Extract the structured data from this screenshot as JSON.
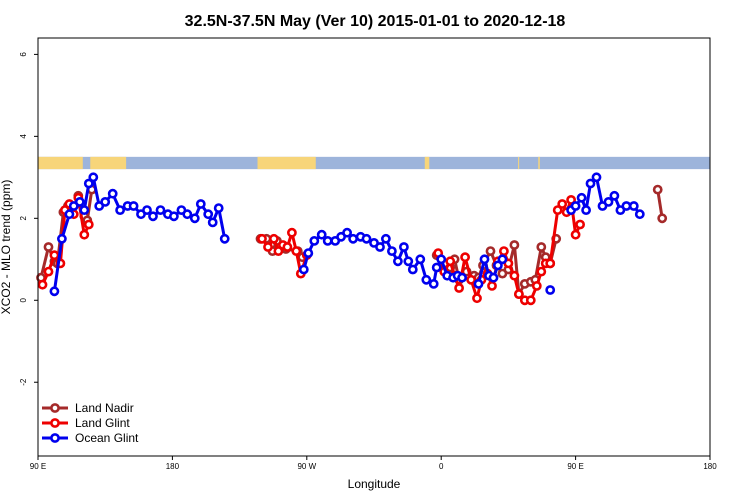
{
  "chart_data": {
    "type": "line",
    "title": "32.5N-37.5N May (Ver 10)   2015-01-01 to 2020-12-18",
    "xlabel": "Longitude",
    "ylabel": "XCO2 - MLO trend (ppm)",
    "xlim": [
      90,
      540
    ],
    "ylim": [
      -3.8,
      6.4
    ],
    "x_ticks": [
      {
        "value": 90,
        "label": "90 E"
      },
      {
        "value": 180,
        "label": "180"
      },
      {
        "value": 270,
        "label": "90 W"
      },
      {
        "value": 360,
        "label": "0"
      },
      {
        "value": 450,
        "label": "90 E"
      },
      {
        "value": 540,
        "label": "180"
      }
    ],
    "y_ticks": [
      {
        "value": -2,
        "label": "-2"
      },
      {
        "value": 0,
        "label": "0"
      },
      {
        "value": 2,
        "label": "2"
      },
      {
        "value": 4,
        "label": "4"
      },
      {
        "value": 6,
        "label": "6"
      }
    ],
    "land_band": {
      "y_range": [
        3.2,
        3.5
      ],
      "ocean_color": "#9db4db",
      "land_color": "#f7d57a",
      "land_segments": [
        [
          90,
          120
        ],
        [
          125,
          149
        ],
        [
          237,
          276
        ],
        [
          349,
          352
        ],
        [
          412,
          411.5
        ],
        [
          425,
          426
        ]
      ]
    },
    "legend_position": "bottom-left",
    "series": [
      {
        "name": "Land Nadir",
        "color": "#a52a2a",
        "segments": [
          [
            [
              92,
              0.55
            ],
            [
              97,
              1.3
            ],
            [
              101,
              0.95
            ],
            [
              103,
              0.9
            ],
            [
              107,
              2.15
            ],
            [
              110,
              2.3
            ],
            [
              113,
              2.15
            ],
            [
              117,
              2.55
            ],
            [
              121,
              2.05
            ],
            [
              123,
              1.95
            ],
            [
              126,
              2.7
            ]
          ],
          [
            [
              239,
              1.5
            ],
            [
              243,
              1.5
            ],
            [
              247,
              1.2
            ],
            [
              250,
              1.45
            ],
            [
              256,
              1.25
            ],
            [
              264,
              1.2
            ],
            [
              267,
              1.05
            ]
          ],
          [
            [
              357,
              1.1
            ],
            [
              363,
              0.9
            ],
            [
              366,
              0.8
            ],
            [
              369,
              1.0
            ],
            [
              372,
              0.5
            ],
            [
              377,
              0.7
            ],
            [
              382,
              0.6
            ],
            [
              385,
              0.55
            ],
            [
              388,
              0.85
            ],
            [
              393,
              1.2
            ],
            [
              397,
              0.85
            ],
            [
              401,
              0.65
            ],
            [
              405,
              0.75
            ],
            [
              409,
              1.35
            ],
            [
              412,
              0.15
            ],
            [
              416,
              0.4
            ],
            [
              420,
              0.45
            ],
            [
              423,
              0.5
            ],
            [
              427,
              1.3
            ],
            [
              430,
              1.05
            ],
            [
              433,
              0.9
            ],
            [
              437,
              1.5
            ]
          ],
          [
            [
              505,
              2.7
            ],
            [
              508,
              2.0
            ]
          ]
        ]
      },
      {
        "name": "Land Glint",
        "color": "#ee0000",
        "segments": [
          [
            [
              93,
              0.38
            ],
            [
              97,
              0.7
            ],
            [
              101,
              1.1
            ],
            [
              105,
              0.9
            ],
            [
              108,
              2.2
            ],
            [
              111,
              2.35
            ],
            [
              114,
              2.1
            ],
            [
              117,
              2.5
            ],
            [
              121,
              1.6
            ],
            [
              124,
              1.85
            ]
          ],
          [
            [
              240,
              1.5
            ],
            [
              244,
              1.3
            ],
            [
              248,
              1.5
            ],
            [
              251,
              1.2
            ],
            [
              254,
              1.35
            ],
            [
              257,
              1.3
            ],
            [
              260,
              1.65
            ],
            [
              263,
              1.2
            ],
            [
              266,
              0.65
            ],
            [
              270,
              1.1
            ]
          ],
          [
            [
              358,
              1.15
            ],
            [
              362,
              0.7
            ],
            [
              366,
              0.95
            ],
            [
              369,
              0.6
            ],
            [
              372,
              0.3
            ],
            [
              376,
              1.05
            ],
            [
              380,
              0.5
            ],
            [
              384,
              0.05
            ],
            [
              387,
              0.5
            ],
            [
              391,
              0.65
            ],
            [
              394,
              0.35
            ],
            [
              398,
              0.95
            ],
            [
              402,
              1.2
            ],
            [
              405,
              0.9
            ],
            [
              409,
              0.6
            ],
            [
              412,
              0.15
            ],
            [
              416,
              0.0
            ],
            [
              420,
              0.0
            ],
            [
              424,
              0.35
            ],
            [
              427,
              0.7
            ],
            [
              430,
              0.9
            ],
            [
              433,
              0.9
            ],
            [
              438,
              2.2
            ],
            [
              441,
              2.35
            ],
            [
              444,
              2.15
            ],
            [
              447,
              2.45
            ],
            [
              450,
              1.6
            ],
            [
              453,
              1.85
            ]
          ]
        ]
      },
      {
        "name": "Ocean Glint",
        "color": "#0000ee",
        "segments": [
          [
            [
              101,
              0.22
            ],
            [
              106,
              1.5
            ],
            [
              111,
              2.1
            ],
            [
              114,
              2.3
            ],
            [
              118,
              2.4
            ],
            [
              121,
              2.2
            ],
            [
              124,
              2.85
            ],
            [
              127,
              3.0
            ],
            [
              131,
              2.3
            ],
            [
              135,
              2.4
            ],
            [
              140,
              2.6
            ],
            [
              145,
              2.2
            ],
            [
              150,
              2.3
            ],
            [
              154,
              2.3
            ],
            [
              159,
              2.1
            ],
            [
              163,
              2.2
            ],
            [
              167,
              2.05
            ],
            [
              172,
              2.2
            ],
            [
              177,
              2.1
            ],
            [
              181,
              2.05
            ],
            [
              186,
              2.2
            ],
            [
              190,
              2.1
            ],
            [
              195,
              2.0
            ],
            [
              199,
              2.35
            ],
            [
              204,
              2.1
            ],
            [
              207,
              1.9
            ],
            [
              211,
              2.25
            ],
            [
              215,
              1.5
            ]
          ],
          [
            [
              268,
              0.75
            ],
            [
              271,
              1.15
            ],
            [
              275,
              1.45
            ],
            [
              280,
              1.6
            ],
            [
              284,
              1.45
            ],
            [
              289,
              1.45
            ],
            [
              293,
              1.55
            ],
            [
              297,
              1.65
            ],
            [
              301,
              1.5
            ],
            [
              306,
              1.55
            ],
            [
              310,
              1.5
            ],
            [
              315,
              1.4
            ],
            [
              319,
              1.3
            ],
            [
              323,
              1.5
            ],
            [
              327,
              1.2
            ],
            [
              331,
              0.95
            ],
            [
              335,
              1.3
            ],
            [
              338,
              0.95
            ],
            [
              341,
              0.75
            ],
            [
              346,
              1.0
            ],
            [
              350,
              0.5
            ],
            [
              355,
              0.4
            ],
            [
              357,
              0.8
            ],
            [
              360,
              1.0
            ],
            [
              364,
              0.6
            ],
            [
              368,
              0.55
            ],
            [
              371,
              0.6
            ],
            [
              374,
              0.55
            ]
          ],
          [
            [
              385,
              0.4
            ],
            [
              389,
              1.0
            ],
            [
              392,
              0.6
            ],
            [
              395,
              0.55
            ],
            [
              398,
              0.85
            ],
            [
              401,
              1.0
            ]
          ],
          [
            [
              433,
              0.25
            ]
          ],
          [
            [
              447,
              2.2
            ],
            [
              450,
              2.3
            ],
            [
              454,
              2.5
            ],
            [
              457,
              2.2
            ],
            [
              460,
              2.85
            ],
            [
              464,
              3.0
            ],
            [
              468,
              2.3
            ],
            [
              472,
              2.4
            ],
            [
              476,
              2.55
            ],
            [
              480,
              2.2
            ],
            [
              484,
              2.3
            ],
            [
              489,
              2.3
            ],
            [
              493,
              2.1
            ]
          ]
        ]
      }
    ]
  }
}
